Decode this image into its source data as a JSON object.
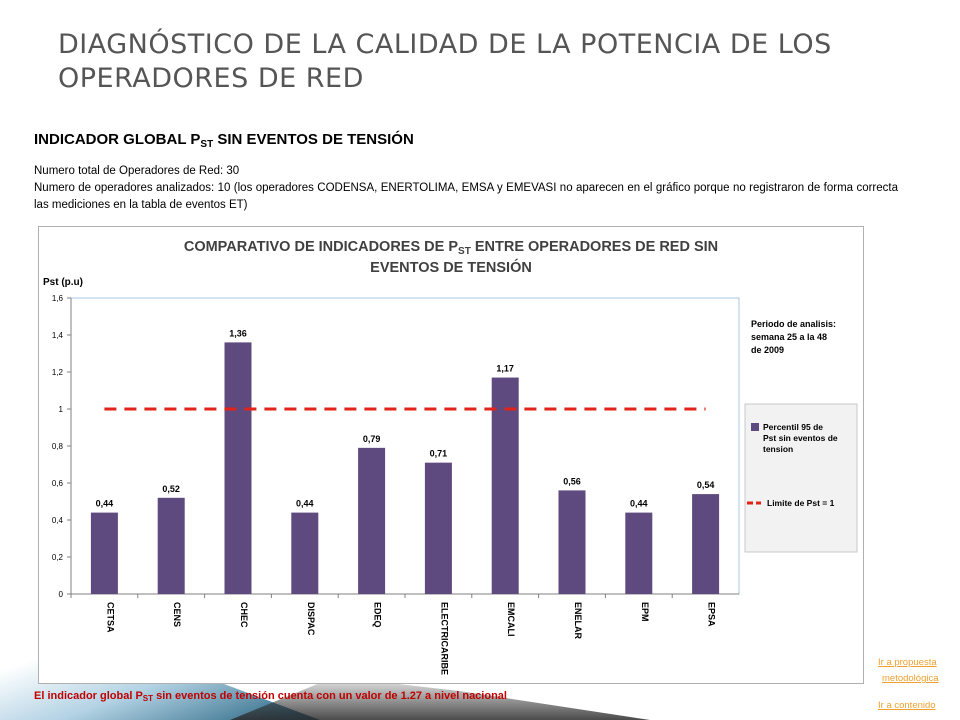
{
  "page": {
    "title": "DIAGNÓSTICO DE LA CALIDAD DE LA POTENCIA DE LOS OPERADORES DE RED",
    "heading_prefix": "INDICADOR GLOBAL P",
    "heading_sub": "ST",
    "heading_suffix": " SIN EVENTOS  DE TENSIÓN",
    "info_line1": "Numero total de Operadores de Red: 30",
    "info_line2": "Numero de operadores analizados: 10 (los operadores CODENSA, ENERTOLIMA, EMSA y EMEVASI no aparecen en el gráfico porque no registraron de forma correcta las mediciones en la tabla de eventos ET)",
    "footnote_prefix": "El indicador global P",
    "footnote_sub": "ST",
    "footnote_suffix": " sin eventos de tensión cuenta con un valor de 1.27  a nivel nacional",
    "link_propuesta_1": "Ir a propuesta",
    "link_propuesta_2": "metodológica",
    "link_contenido": "Ir a contenido"
  },
  "chart_data": {
    "type": "bar",
    "title_line1_prefix": "COMPARATIVO DE INDICADORES DE P",
    "title_line1_sub": "ST",
    "title_line1_suffix": " ENTRE OPERADORES DE RED SIN",
    "title_line2": "EVENTOS DE TENSIÓN",
    "ylabel": "Pst (p.u)",
    "ylim": [
      0,
      1.6
    ],
    "yticks": [
      "0",
      "0,2",
      "0,4",
      "0,6",
      "0,8",
      "1",
      "1,2",
      "1,4",
      "1,6"
    ],
    "categories": [
      "CETSA",
      "CENS",
      "CHEC",
      "DISPAC",
      "EDEQ",
      "ELECTRICARIBE",
      "EMCALI",
      "ENELAR",
      "EPM",
      "EPSA"
    ],
    "values": [
      0.44,
      0.52,
      1.36,
      0.44,
      0.79,
      0.71,
      1.17,
      0.56,
      0.44,
      0.54
    ],
    "value_labels": [
      "0,44",
      "0,52",
      "1,36",
      "0,44",
      "0,79",
      "0,71",
      "1,17",
      "0,56",
      "0,44",
      "0,54"
    ],
    "limit_value": 1,
    "annotation": [
      "Periodo de analisis:",
      "semana 25 a la 48",
      "de 2009"
    ],
    "legend": [
      {
        "label_lines": [
          "Percentil 95 de",
          "Pst sin eventos de",
          "tension"
        ],
        "color": "#5e4a7e",
        "kind": "bar"
      },
      {
        "label_lines": [
          "Limite de Pst = 1"
        ],
        "color": "#e2231a",
        "kind": "dashed-line"
      }
    ],
    "legend_placement": "right",
    "grid": false
  }
}
